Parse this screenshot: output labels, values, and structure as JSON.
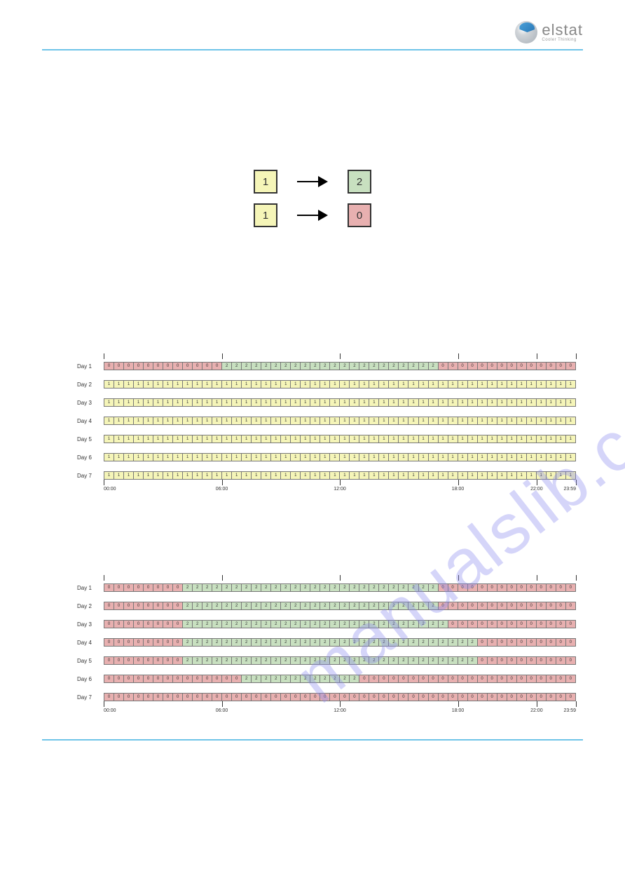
{
  "brand": {
    "name": "elstat",
    "tagline": "Cooler Thinking"
  },
  "watermark": "manualslib.com",
  "colors": {
    "state0": "#e8b0b0",
    "state1": "#f5f5b8",
    "state2": "#c8e0c0",
    "border": "#787878",
    "rule": "#6fc4e8"
  },
  "legend": [
    {
      "from": 1,
      "from_color": "#f5f5b8",
      "to": 2,
      "to_color": "#c8e0c0"
    },
    {
      "from": 1,
      "from_color": "#f5f5b8",
      "to": 0,
      "to_color": "#e8b0b0"
    }
  ],
  "axis": {
    "ticks": [
      0,
      0.25,
      0.5,
      0.75,
      0.9167,
      1.0
    ],
    "labels": [
      {
        "pos": 0,
        "text": "00:00"
      },
      {
        "pos": 0.25,
        "text": "06:00"
      },
      {
        "pos": 0.5,
        "text": "12:00"
      },
      {
        "pos": 0.75,
        "text": "18:00"
      },
      {
        "pos": 0.9167,
        "text": "22:00"
      },
      {
        "pos": 1.0,
        "text": "23:59",
        "last": true
      }
    ]
  },
  "chart1": {
    "days": [
      "Day 1",
      "Day 2",
      "Day 3",
      "Day 4",
      "Day 5",
      "Day 6",
      "Day 7"
    ],
    "rows": [
      [
        0,
        0,
        0,
        0,
        0,
        0,
        0,
        0,
        0,
        0,
        0,
        0,
        2,
        2,
        2,
        2,
        2,
        2,
        2,
        2,
        2,
        2,
        2,
        2,
        2,
        2,
        2,
        2,
        2,
        2,
        2,
        2,
        2,
        2,
        0,
        0,
        0,
        0,
        0,
        0,
        0,
        0,
        0,
        0,
        0,
        0,
        0,
        0
      ],
      [
        1,
        1,
        1,
        1,
        1,
        1,
        1,
        1,
        1,
        1,
        1,
        1,
        1,
        1,
        1,
        1,
        1,
        1,
        1,
        1,
        1,
        1,
        1,
        1,
        1,
        1,
        1,
        1,
        1,
        1,
        1,
        1,
        1,
        1,
        1,
        1,
        1,
        1,
        1,
        1,
        1,
        1,
        1,
        1,
        1,
        1,
        1,
        1
      ],
      [
        1,
        1,
        1,
        1,
        1,
        1,
        1,
        1,
        1,
        1,
        1,
        1,
        1,
        1,
        1,
        1,
        1,
        1,
        1,
        1,
        1,
        1,
        1,
        1,
        1,
        1,
        1,
        1,
        1,
        1,
        1,
        1,
        1,
        1,
        1,
        1,
        1,
        1,
        1,
        1,
        1,
        1,
        1,
        1,
        1,
        1,
        1,
        1
      ],
      [
        1,
        1,
        1,
        1,
        1,
        1,
        1,
        1,
        1,
        1,
        1,
        1,
        1,
        1,
        1,
        1,
        1,
        1,
        1,
        1,
        1,
        1,
        1,
        1,
        1,
        1,
        1,
        1,
        1,
        1,
        1,
        1,
        1,
        1,
        1,
        1,
        1,
        1,
        1,
        1,
        1,
        1,
        1,
        1,
        1,
        1,
        1,
        1
      ],
      [
        1,
        1,
        1,
        1,
        1,
        1,
        1,
        1,
        1,
        1,
        1,
        1,
        1,
        1,
        1,
        1,
        1,
        1,
        1,
        1,
        1,
        1,
        1,
        1,
        1,
        1,
        1,
        1,
        1,
        1,
        1,
        1,
        1,
        1,
        1,
        1,
        1,
        1,
        1,
        1,
        1,
        1,
        1,
        1,
        1,
        1,
        1,
        1
      ],
      [
        1,
        1,
        1,
        1,
        1,
        1,
        1,
        1,
        1,
        1,
        1,
        1,
        1,
        1,
        1,
        1,
        1,
        1,
        1,
        1,
        1,
        1,
        1,
        1,
        1,
        1,
        1,
        1,
        1,
        1,
        1,
        1,
        1,
        1,
        1,
        1,
        1,
        1,
        1,
        1,
        1,
        1,
        1,
        1,
        1,
        1,
        1,
        1
      ],
      [
        1,
        1,
        1,
        1,
        1,
        1,
        1,
        1,
        1,
        1,
        1,
        1,
        1,
        1,
        1,
        1,
        1,
        1,
        1,
        1,
        1,
        1,
        1,
        1,
        1,
        1,
        1,
        1,
        1,
        1,
        1,
        1,
        1,
        1,
        1,
        1,
        1,
        1,
        1,
        1,
        1,
        1,
        1,
        1,
        1,
        1,
        1,
        1
      ]
    ]
  },
  "chart2": {
    "days": [
      "Day 1",
      "Day 2",
      "Day 3",
      "Day 4",
      "Day 5",
      "Day 6",
      "Day 7"
    ],
    "rows": [
      [
        0,
        0,
        0,
        0,
        0,
        0,
        0,
        0,
        2,
        2,
        2,
        2,
        2,
        2,
        2,
        2,
        2,
        2,
        2,
        2,
        2,
        2,
        2,
        2,
        2,
        2,
        2,
        2,
        2,
        2,
        2,
        2,
        2,
        2,
        0,
        0,
        0,
        0,
        0,
        0,
        0,
        0,
        0,
        0,
        0,
        0,
        0,
        0
      ],
      [
        0,
        0,
        0,
        0,
        0,
        0,
        0,
        0,
        2,
        2,
        2,
        2,
        2,
        2,
        2,
        2,
        2,
        2,
        2,
        2,
        2,
        2,
        2,
        2,
        2,
        2,
        2,
        2,
        2,
        2,
        2,
        2,
        2,
        2,
        0,
        0,
        0,
        0,
        0,
        0,
        0,
        0,
        0,
        0,
        0,
        0,
        0,
        0
      ],
      [
        0,
        0,
        0,
        0,
        0,
        0,
        0,
        0,
        2,
        2,
        2,
        2,
        2,
        2,
        2,
        2,
        2,
        2,
        2,
        2,
        2,
        2,
        2,
        2,
        2,
        2,
        2,
        2,
        2,
        2,
        2,
        2,
        2,
        2,
        2,
        0,
        0,
        0,
        0,
        0,
        0,
        0,
        0,
        0,
        0,
        0,
        0,
        0
      ],
      [
        0,
        0,
        0,
        0,
        0,
        0,
        0,
        0,
        2,
        2,
        2,
        2,
        2,
        2,
        2,
        2,
        2,
        2,
        2,
        2,
        2,
        2,
        2,
        2,
        2,
        2,
        2,
        2,
        2,
        2,
        2,
        2,
        2,
        2,
        2,
        2,
        2,
        2,
        0,
        0,
        0,
        0,
        0,
        0,
        0,
        0,
        0,
        0
      ],
      [
        0,
        0,
        0,
        0,
        0,
        0,
        0,
        0,
        2,
        2,
        2,
        2,
        2,
        2,
        2,
        2,
        2,
        2,
        2,
        2,
        2,
        2,
        2,
        2,
        2,
        2,
        2,
        2,
        2,
        2,
        2,
        2,
        2,
        2,
        2,
        2,
        2,
        2,
        0,
        0,
        0,
        0,
        0,
        0,
        0,
        0,
        0,
        0
      ],
      [
        0,
        0,
        0,
        0,
        0,
        0,
        0,
        0,
        0,
        0,
        0,
        0,
        0,
        0,
        2,
        2,
        2,
        2,
        2,
        2,
        2,
        2,
        2,
        2,
        2,
        2,
        0,
        0,
        0,
        0,
        0,
        0,
        0,
        0,
        0,
        0,
        0,
        0,
        0,
        0,
        0,
        0,
        0,
        0,
        0,
        0,
        0,
        0
      ],
      [
        0,
        0,
        0,
        0,
        0,
        0,
        0,
        0,
        0,
        0,
        0,
        0,
        0,
        0,
        0,
        0,
        0,
        0,
        0,
        0,
        0,
        0,
        0,
        0,
        0,
        0,
        0,
        0,
        0,
        0,
        0,
        0,
        0,
        0,
        0,
        0,
        0,
        0,
        0,
        0,
        0,
        0,
        0,
        0,
        0,
        0,
        0,
        0
      ]
    ]
  }
}
